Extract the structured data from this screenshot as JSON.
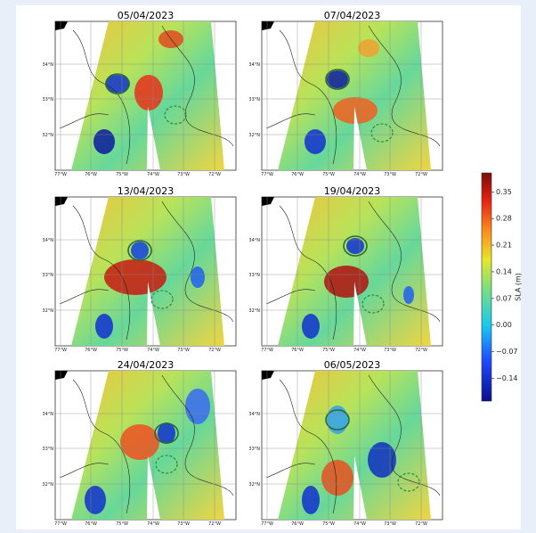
{
  "panels": [
    {
      "title": "05/04/2023"
    },
    {
      "title": "07/04/2023"
    },
    {
      "title": "13/04/2023"
    },
    {
      "title": "19/04/2023"
    },
    {
      "title": "24/04/2023"
    },
    {
      "title": "06/05/2023"
    }
  ],
  "lat_labels": [
    "34°N",
    "33°N",
    "32°N"
  ],
  "lon_labels": [
    "77°W",
    "76°W",
    "75°W",
    "74°W",
    "73°W",
    "72°W"
  ],
  "colorbar": {
    "label": "SLA (m)",
    "clim": [
      -0.2,
      0.4
    ],
    "ticks": [
      0.35,
      0.28,
      0.21,
      0.14,
      0.07,
      {
        "value": 0,
        "label": "0.00"
      },
      {
        "value": -0.07,
        "label": "−0.07"
      },
      {
        "value": -0.14,
        "label": "−0.14"
      }
    ]
  }
}
